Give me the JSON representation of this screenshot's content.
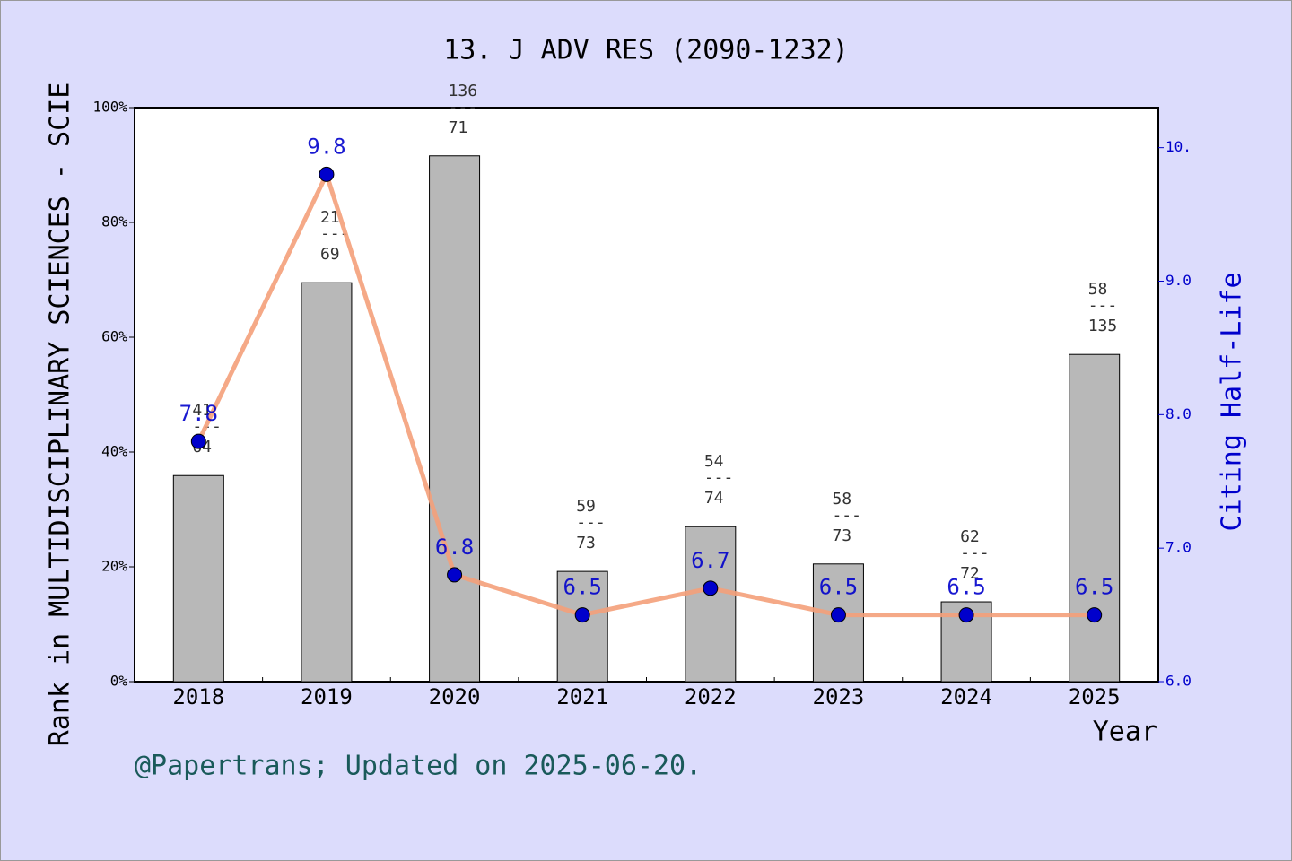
{
  "chart_data": {
    "type": "bar_line",
    "title": "13. J ADV RES (2090-1232)",
    "ylabel": "Rank in MULTIDISCIPLINARY SCIENCES - SCIE",
    "y2label": "Citing Half-Life",
    "xlabel": "Year",
    "footer": "@Papertrans; Updated on 2025-06-20.",
    "categories": [
      "2018",
      "2019",
      "2020",
      "2021",
      "2022",
      "2023",
      "2024",
      "2025"
    ],
    "bars": {
      "color": "#b8b8b8",
      "values": [
        35.9,
        69.5,
        91.6,
        19.2,
        27.0,
        20.5,
        13.9,
        57.0
      ],
      "separator": "---",
      "rank_labels": [
        {
          "rank": "41",
          "total": "64"
        },
        {
          "rank": "21",
          "total": "69"
        },
        {
          "rank": "136",
          "total": "71"
        },
        {
          "rank": "59",
          "total": "73"
        },
        {
          "rank": "54",
          "total": "74"
        },
        {
          "rank": "58",
          "total": "73"
        },
        {
          "rank": "62",
          "total": "72"
        },
        {
          "rank": "58",
          "total": "135"
        }
      ]
    },
    "line": {
      "axis": "y2",
      "color": "#f4a07a",
      "marker_color": "#0000cc",
      "values": [
        7.8,
        9.8,
        6.8,
        6.5,
        6.7,
        6.5,
        6.5,
        6.5
      ]
    },
    "ylim": [
      0,
      100
    ],
    "yticks": [
      {
        "value": 0,
        "label": "0%"
      },
      {
        "value": 20,
        "label": "20%"
      },
      {
        "value": 40,
        "label": "40%"
      },
      {
        "value": 60,
        "label": "60%"
      },
      {
        "value": 80,
        "label": "80%"
      },
      {
        "value": 100,
        "label": "100%"
      }
    ],
    "y2lim": [
      6,
      10.3
    ],
    "y2ticks": [
      {
        "value": 6,
        "label": "6.0"
      },
      {
        "value": 7,
        "label": "7.0"
      },
      {
        "value": 8,
        "label": "8.0"
      },
      {
        "value": 9,
        "label": "9.0"
      },
      {
        "value": 10,
        "label": "10."
      }
    ]
  }
}
